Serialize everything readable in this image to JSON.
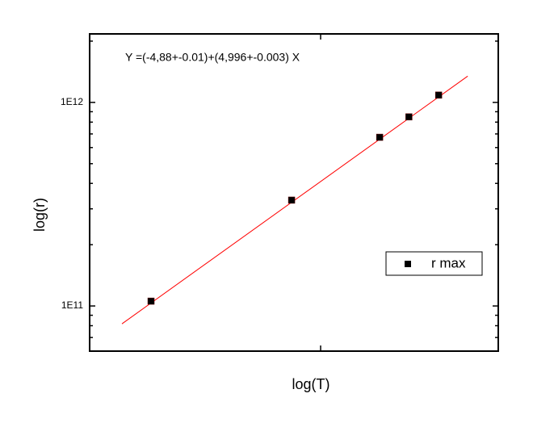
{
  "chart_data": {
    "type": "scatter",
    "xlabel": "log(T)",
    "ylabel": "log(r)",
    "annotation": "Y =(-4,88+-0.01)+(4,996+-0.003) X",
    "xlog": true,
    "ylog": true,
    "xlim": [
      1375,
      2668
    ],
    "ylim": [
      60000000000,
      2170000000000
    ],
    "xticks": [
      2000
    ],
    "xtick_labels_shown": false,
    "yticks": [
      {
        "value": 100000000000,
        "label": "1E11"
      },
      {
        "value": 1000000000000,
        "label": "1E12"
      }
    ],
    "yminor_ticks": [
      70000000000,
      80000000000,
      90000000000,
      200000000000,
      300000000000,
      400000000000,
      500000000000,
      600000000000,
      700000000000,
      800000000000,
      900000000000,
      2000000000000
    ],
    "legend_position": "right",
    "series": [
      {
        "name": "r max",
        "color": "#000000",
        "x": [
          1519,
          1908,
          2201,
          2308,
          2422
        ],
        "values": [
          105600000000,
          331000000000,
          674000000000,
          849000000000,
          1086000000000
        ]
      }
    ],
    "fit_line": {
      "color": "#ff0000",
      "x": [
        1449,
        2539
      ],
      "values": [
        81700000000,
        1346000000000
      ]
    }
  }
}
